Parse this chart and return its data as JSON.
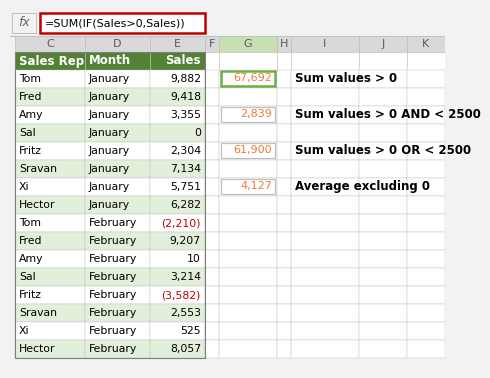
{
  "formula_bar_text": "=SUM(IF(Sales>0,Sales))",
  "rows": [
    [
      "Tom",
      "January",
      "9,882"
    ],
    [
      "Fred",
      "January",
      "9,418"
    ],
    [
      "Amy",
      "January",
      "3,355"
    ],
    [
      "Sal",
      "January",
      "0"
    ],
    [
      "Fritz",
      "January",
      "2,304"
    ],
    [
      "Sravan",
      "January",
      "7,134"
    ],
    [
      "Xi",
      "January",
      "5,751"
    ],
    [
      "Hector",
      "January",
      "6,282"
    ],
    [
      "Tom",
      "February",
      "(2,210)"
    ],
    [
      "Fred",
      "February",
      "9,207"
    ],
    [
      "Amy",
      "February",
      "10"
    ],
    [
      "Sal",
      "February",
      "3,214"
    ],
    [
      "Fritz",
      "February",
      "(3,582)"
    ],
    [
      "Sravan",
      "February",
      "2,553"
    ],
    [
      "Xi",
      "February",
      "525"
    ],
    [
      "Hector",
      "February",
      "8,057"
    ]
  ],
  "negative_rows": [
    8,
    12
  ],
  "result_boxes": [
    {
      "value": "67,692",
      "label": "Sum values > 0"
    },
    {
      "value": "2,839",
      "label": "Sum values > 0 AND < 2500"
    },
    {
      "value": "61,900",
      "label": "Sum values > 0 OR < 2500"
    },
    {
      "value": "4,127",
      "label": "Average excluding 0"
    }
  ],
  "header_bg": "#538135",
  "header_text": "#ffffff",
  "row_bg_white": "#ffffff",
  "row_bg_green": "#e2efda",
  "negative_color": "#c00000",
  "orange": "#ed7d31",
  "formula_border": "#c00000",
  "col_hdr_bg": "#d9d9d9",
  "col_hdr_text": "#595959",
  "g_col_hdr_bg": "#c6e0b4",
  "grid": "#bfbfbf",
  "black": "#000000",
  "white": "#ffffff",
  "bg": "#f2f2f2",
  "green_border": "#70ad47"
}
